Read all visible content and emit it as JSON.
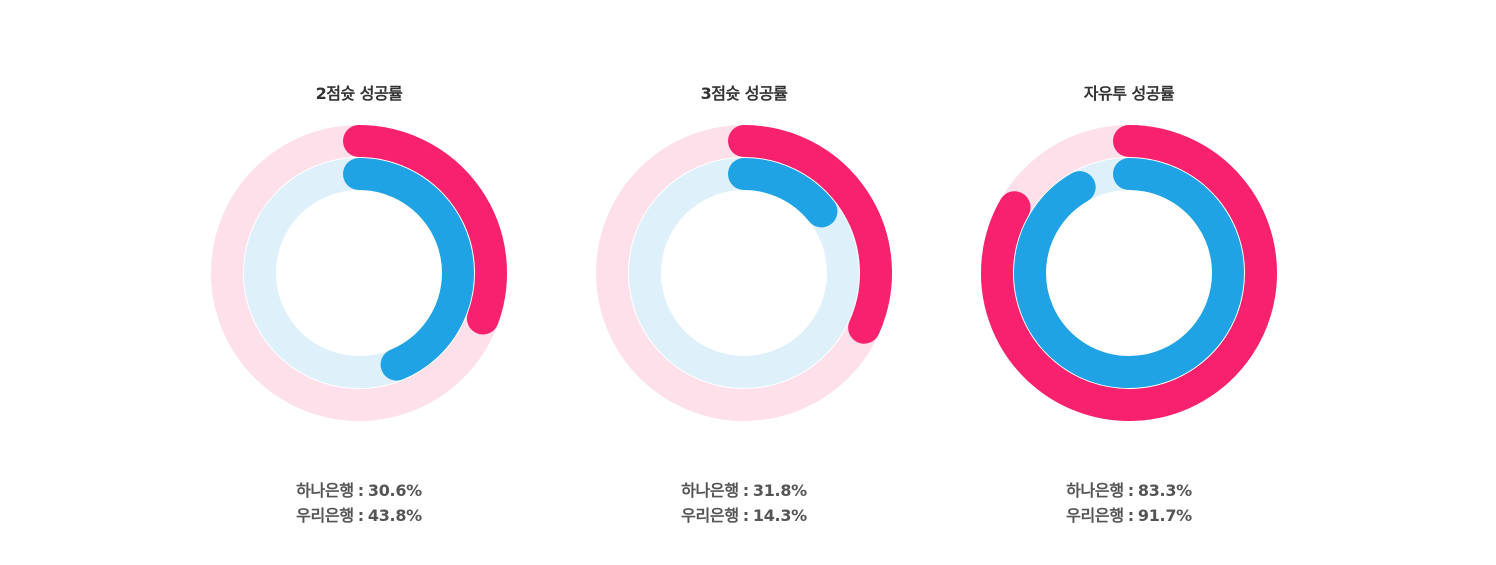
{
  "chart_data": [
    {
      "type": "radial-bar",
      "title": "2점슛 성공률",
      "series": [
        {
          "name": "하나은행",
          "value": 30.6,
          "unit": "%",
          "color": "#F7216E",
          "track_color": "#FDE0E9"
        },
        {
          "name": "우리은행",
          "value": 43.8,
          "unit": "%",
          "color": "#20A3E4",
          "track_color": "#DEF0FA"
        }
      ],
      "max": 100
    },
    {
      "type": "radial-bar",
      "title": "3점슛 성공률",
      "series": [
        {
          "name": "하나은행",
          "value": 31.8,
          "unit": "%",
          "color": "#F7216E",
          "track_color": "#FDE0E9"
        },
        {
          "name": "우리은행",
          "value": 14.3,
          "unit": "%",
          "color": "#20A3E4",
          "track_color": "#DEF0FA"
        }
      ],
      "max": 100
    },
    {
      "type": "radial-bar",
      "title": "자유투 성공률",
      "series": [
        {
          "name": "하나은행",
          "value": 83.3,
          "unit": "%",
          "color": "#F7216E",
          "track_color": "#FDE0E9"
        },
        {
          "name": "우리은행",
          "value": 91.7,
          "unit": "%",
          "color": "#20A3E4",
          "track_color": "#DEF0FA"
        }
      ],
      "max": 100
    }
  ],
  "legend_separator": ":"
}
